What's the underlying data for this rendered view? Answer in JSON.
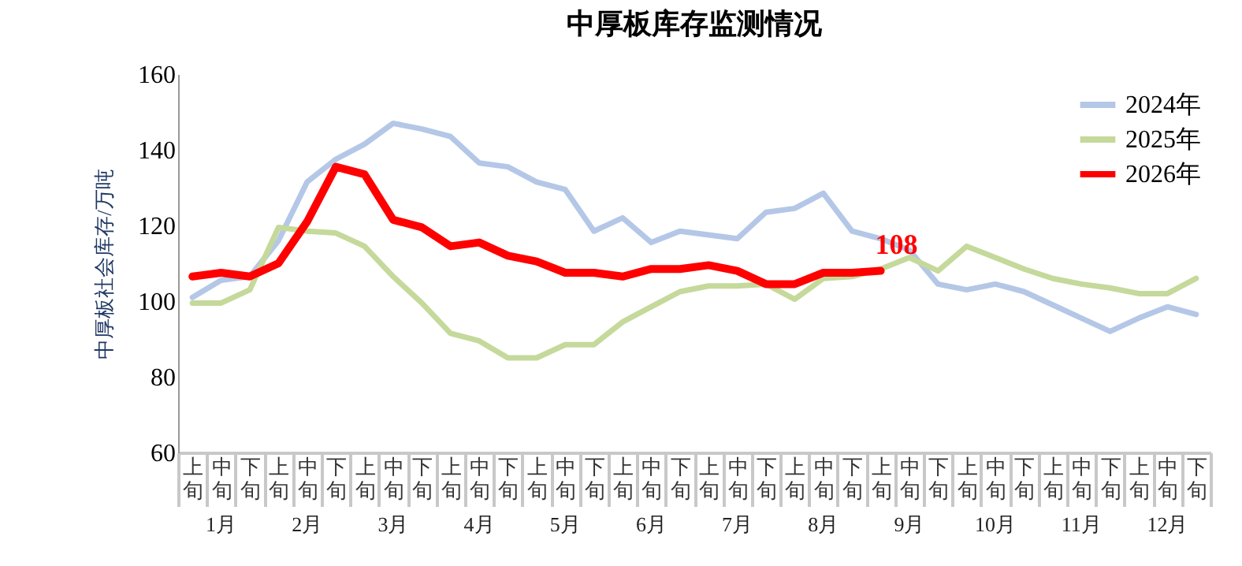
{
  "chart_data": {
    "type": "line",
    "title": "中厚板库存监测情况",
    "ylabel": "中厚板社会库存/万吨",
    "categories": [
      "上旬",
      "中旬",
      "下旬",
      "上旬",
      "中旬",
      "下旬",
      "上旬",
      "中旬",
      "下旬",
      "上旬",
      "中旬",
      "下旬",
      "上旬",
      "中旬",
      "下旬",
      "上旬",
      "中旬",
      "下旬",
      "上旬",
      "中旬",
      "下旬",
      "上旬",
      "中旬",
      "下旬",
      "上旬",
      "中旬",
      "下旬",
      "上旬",
      "中旬",
      "下旬",
      "上旬",
      "中旬",
      "下旬",
      "上旬",
      "中旬",
      "下旬"
    ],
    "annotations": [
      "1月",
      "2月",
      "3月",
      "4月",
      "5月",
      "6月",
      "7月",
      "8月",
      "9月",
      "10月",
      "11月",
      "12月"
    ],
    "ylim": [
      60,
      160
    ],
    "yticks": [
      60,
      80,
      100,
      120,
      140,
      160
    ],
    "grid": false,
    "legend": "top right",
    "marker": "none",
    "series": [
      {
        "name": "2024年",
        "color": "#b4c7e7",
        "values": [
          101,
          105.5,
          106.5,
          116,
          131.5,
          137.5,
          141.5,
          147,
          145.5,
          143.5,
          136.5,
          135.5,
          131.5,
          129.5,
          118.5,
          122,
          115.5,
          118.5,
          117.5,
          116.5,
          123.5,
          124.5,
          128.5,
          118.5,
          116.5,
          113.5,
          104.5,
          103,
          104.5,
          102.5,
          99,
          95.5,
          92,
          95.5,
          98.5,
          96.5
        ]
      },
      {
        "name": "2025年",
        "color": "#c5d99b",
        "values": [
          99.5,
          99.5,
          103,
          119.5,
          118.5,
          118,
          114.5,
          106.5,
          99.5,
          91.5,
          89.5,
          85,
          85,
          88.5,
          88.5,
          94.5,
          98.5,
          102.5,
          104,
          104,
          104.5,
          100.5,
          106,
          106.5,
          108.5,
          111.5,
          108,
          114.5,
          111.5,
          108.5,
          106,
          104.5,
          103.5,
          102,
          102,
          106
        ]
      },
      {
        "name": "2026年",
        "color": "#ff0000",
        "values": [
          106.5,
          107.5,
          106.5,
          110,
          121,
          135.5,
          133.5,
          121.5,
          119.5,
          114.5,
          115.5,
          112,
          110.5,
          107.5,
          107.5,
          106.5,
          108.5,
          108.5,
          109.5,
          108,
          104.5,
          104.5,
          107.5,
          107.5,
          108,
          null,
          null,
          null,
          null,
          null,
          null,
          null,
          null,
          null,
          null,
          null
        ],
        "value_labels": [
          null,
          null,
          null,
          null,
          null,
          null,
          null,
          null,
          null,
          null,
          null,
          null,
          null,
          null,
          null,
          null,
          null,
          null,
          null,
          null,
          null,
          null,
          null,
          null,
          "108",
          null,
          null,
          null,
          null,
          null,
          null,
          null,
          null,
          null,
          null,
          null
        ]
      }
    ]
  }
}
